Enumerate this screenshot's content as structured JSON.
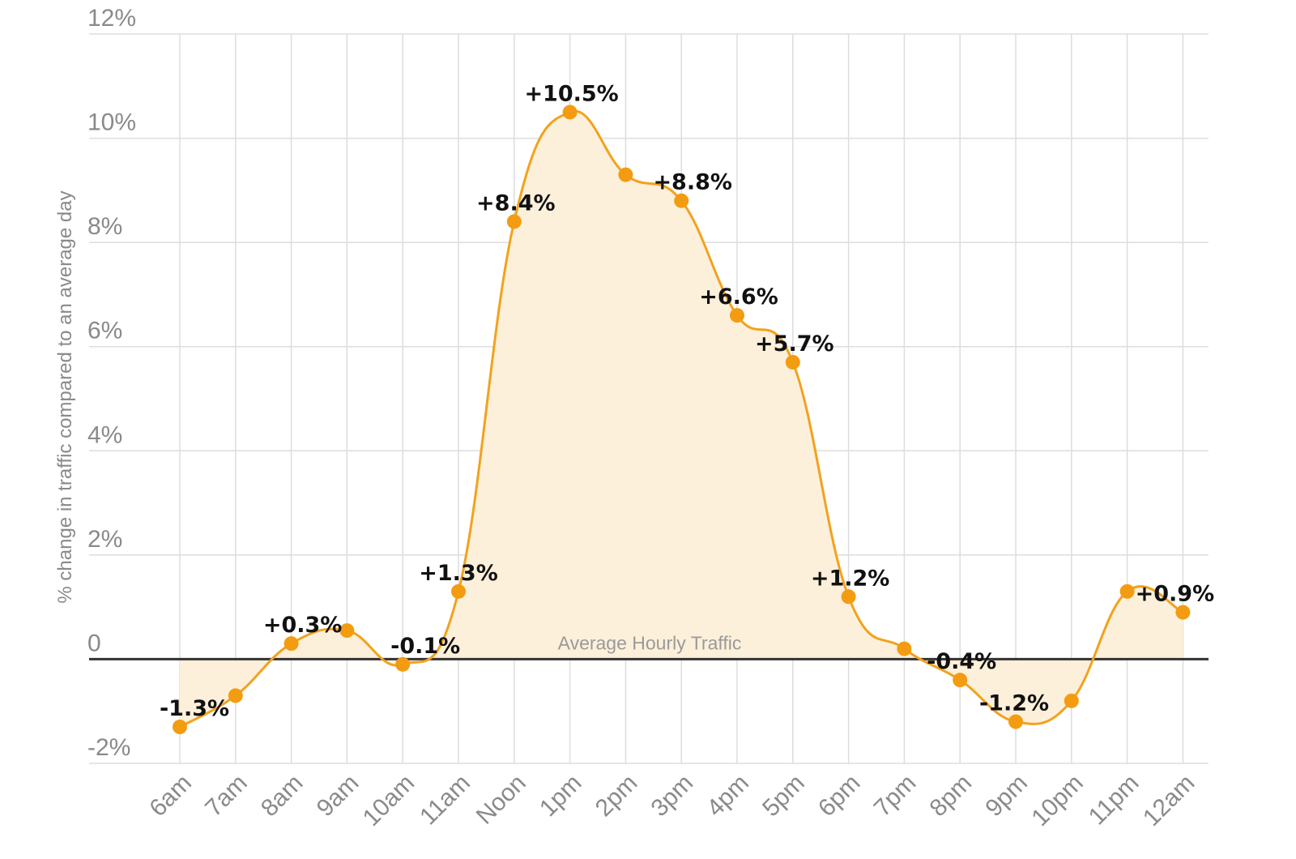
{
  "chart_data": {
    "type": "area",
    "ylabel": "% change in traffic compared to an average day",
    "xlabel": "",
    "baseline_label": "Average Hourly Traffic",
    "categories": [
      "6am",
      "7am",
      "8am",
      "9am",
      "10am",
      "11am",
      "Noon",
      "1pm",
      "2pm",
      "3pm",
      "4pm",
      "5pm",
      "6pm",
      "7pm",
      "8pm",
      "9pm",
      "10pm",
      "11pm",
      "12am"
    ],
    "values": [
      -1.3,
      -0.7,
      0.3,
      0.55,
      -0.1,
      1.3,
      8.4,
      10.5,
      9.3,
      8.8,
      6.6,
      5.7,
      1.2,
      0.2,
      -0.4,
      -1.2,
      -0.8,
      1.3,
      0.9
    ],
    "data_labels": [
      "-1.3%",
      "",
      "+0.3%",
      "",
      "-0.1%",
      "+1.3%",
      "+8.4%",
      "+10.5%",
      "",
      "+8.8%",
      "+6.6%",
      "+5.7%",
      "+1.2%",
      "",
      "-0.4%",
      "-1.2%",
      "",
      "",
      "+0.9%"
    ],
    "ylim": [
      -2,
      12
    ],
    "yticks": [
      -2,
      0,
      2,
      4,
      6,
      8,
      10,
      12
    ],
    "ytick_labels": [
      "-2%",
      "0",
      "2%",
      "4%",
      "6%",
      "8%",
      "10%",
      "12%"
    ],
    "grid": true,
    "colors": {
      "line": "#F2A21E",
      "fill": "#FDF0DA",
      "marker": "#F39C12",
      "baseline": "#333333",
      "grid": "#DDDDDD"
    }
  }
}
